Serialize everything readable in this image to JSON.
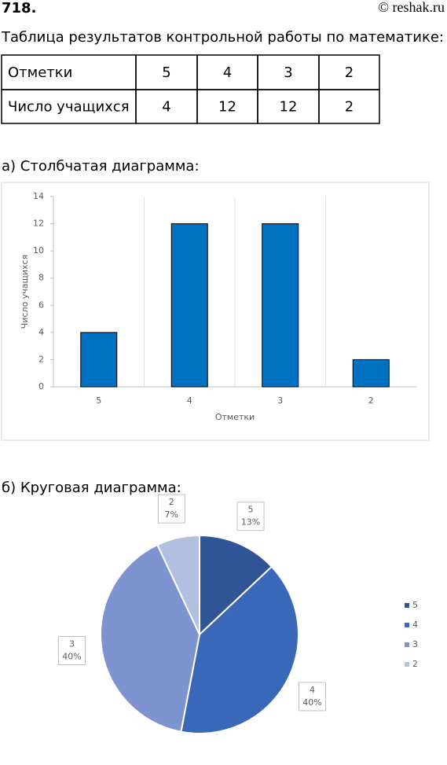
{
  "header": {
    "number": "718.",
    "source": "© reshak.ru",
    "title": "Таблица результатов контрольной работы по математике:"
  },
  "table": {
    "rows": [
      [
        "Отметки",
        5,
        4,
        3,
        2
      ],
      [
        "Число учащихся",
        4,
        12,
        12,
        2
      ]
    ]
  },
  "sections": [
    "а) Столбчатая диаграмма:",
    "б) Круговая диаграмма:"
  ],
  "chart_data": [
    {
      "type": "bar",
      "categories": [
        "5",
        "4",
        "3",
        "2"
      ],
      "values": [
        4,
        12,
        12,
        2
      ],
      "color": "#0070c0",
      "xlabel": "Отметки",
      "ylabel": "Число учащихся",
      "ylim": [
        0,
        14
      ],
      "yticks": [
        0,
        2,
        4,
        6,
        8,
        10,
        12,
        14
      ],
      "grid": true
    },
    {
      "type": "pie",
      "categories": [
        "5",
        "4",
        "3",
        "2"
      ],
      "values": [
        13,
        40,
        40,
        7
      ],
      "value_labels": [
        "13%",
        "40%",
        "40%",
        "7%"
      ],
      "colors": [
        "#2f5597",
        "#3a68b8",
        "#7e94d0",
        "#b3bfe0"
      ],
      "legend": "right"
    }
  ]
}
